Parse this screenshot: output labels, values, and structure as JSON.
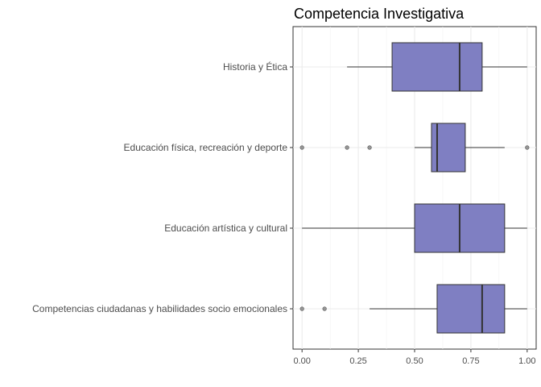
{
  "chart_data": {
    "type": "boxplot",
    "orientation": "horizontal",
    "title": "Competencia Investigativa",
    "xlabel": "",
    "ylabel": "",
    "xlim": [
      -0.04,
      1.04
    ],
    "xticks": [
      0,
      0.25,
      0.5,
      0.75,
      1
    ],
    "xtick_labels": [
      "0.00",
      "0.25",
      "0.50",
      "0.75",
      "1.00"
    ],
    "grid": true,
    "legend": "none",
    "fill_color": "#7f7fc2",
    "categories": [
      "Historia y Ética",
      "Educación física, recreación y deporte",
      "Educación artística y cultural",
      "Competencias ciudadanas y habilidades socio emocionales"
    ],
    "boxes": [
      {
        "whisker_low": 0.2,
        "q1": 0.4,
        "median": 0.7,
        "q3": 0.8,
        "whisker_high": 1.0,
        "outliers": []
      },
      {
        "whisker_low": 0.5,
        "q1": 0.575,
        "median": 0.6,
        "q3": 0.725,
        "whisker_high": 0.9,
        "outliers": [
          0.0,
          0.2,
          0.3,
          1.0
        ]
      },
      {
        "whisker_low": 0.0,
        "q1": 0.5,
        "median": 0.7,
        "q3": 0.9,
        "whisker_high": 1.0,
        "outliers": []
      },
      {
        "whisker_low": 0.3,
        "q1": 0.6,
        "median": 0.8,
        "q3": 0.9,
        "whisker_high": 1.0,
        "outliers": [
          0.0,
          0.1
        ]
      }
    ]
  }
}
